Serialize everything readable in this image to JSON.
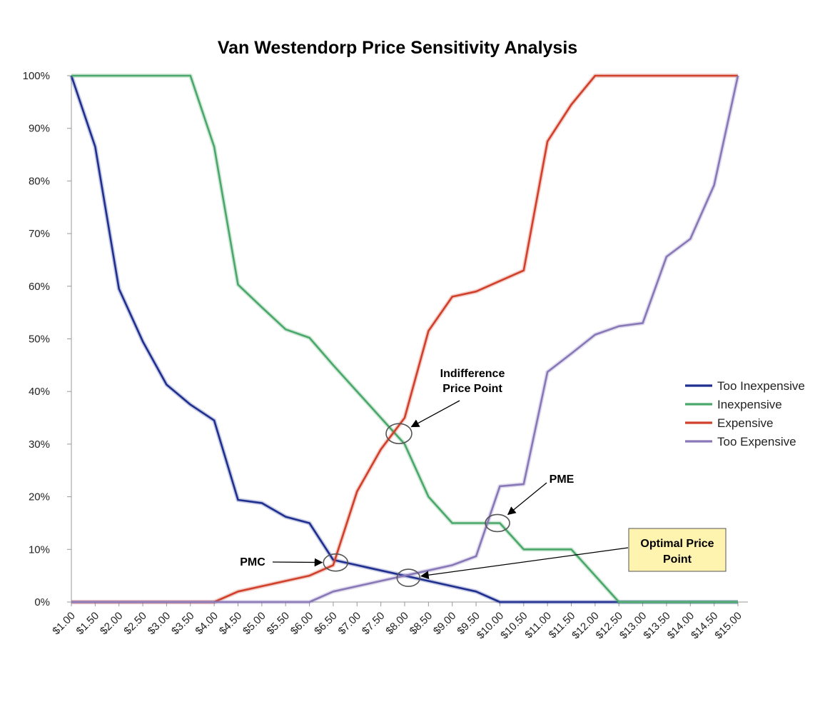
{
  "chart_data": {
    "type": "line",
    "title": "Van Westendorp Price Sensitivity Analysis",
    "xlabel": "",
    "ylabel": "",
    "x": [
      "$1.00",
      "$1.50",
      "$2.00",
      "$2.50",
      "$3.00",
      "$3.50",
      "$4.00",
      "$4.50",
      "$5.00",
      "$5.50",
      "$6.00",
      "$6.50",
      "$7.00",
      "$7.50",
      "$8.00",
      "$8.50",
      "$9.00",
      "$9.50",
      "$10.00",
      "$10.50",
      "$11.00",
      "$11.50",
      "$12.00",
      "$12.50",
      "$13.00",
      "$13.50",
      "$14.00",
      "$14.50",
      "$15.00"
    ],
    "yticks": [
      "0%",
      "10%",
      "20%",
      "30%",
      "40%",
      "50%",
      "60%",
      "70%",
      "80%",
      "90%",
      "100%"
    ],
    "ylim": [
      0,
      100
    ],
    "grid": false,
    "legend_position": "right",
    "series": [
      {
        "name": "Too Inexpensive",
        "color": "#1f2f8f",
        "points": [
          [
            1.0,
            100
          ],
          [
            1.5,
            86.5
          ],
          [
            2.0,
            59.5
          ],
          [
            2.5,
            49.5
          ],
          [
            3.0,
            41.3
          ],
          [
            3.5,
            37.5
          ],
          [
            4.0,
            34.5
          ],
          [
            4.5,
            19.4
          ],
          [
            5.0,
            18.8
          ],
          [
            5.5,
            16.2
          ],
          [
            6.0,
            15.0
          ],
          [
            6.5,
            8.0
          ],
          [
            7.0,
            7.0
          ],
          [
            7.5,
            6.0
          ],
          [
            8.0,
            5.0
          ],
          [
            8.5,
            4.0
          ],
          [
            9.0,
            3.0
          ],
          [
            9.5,
            2.0
          ],
          [
            10.0,
            0
          ],
          [
            15.0,
            0
          ]
        ]
      },
      {
        "name": "Inexpensive",
        "color": "#4aa86a",
        "points": [
          [
            1.0,
            100
          ],
          [
            3.5,
            100
          ],
          [
            4.0,
            86.5
          ],
          [
            4.5,
            60.3
          ],
          [
            5.0,
            56.0
          ],
          [
            5.5,
            51.8
          ],
          [
            6.0,
            50.2
          ],
          [
            6.5,
            45.0
          ],
          [
            7.0,
            40.0
          ],
          [
            7.5,
            35.0
          ],
          [
            8.0,
            30.0
          ],
          [
            8.5,
            20.0
          ],
          [
            9.0,
            15.0
          ],
          [
            9.5,
            15.0
          ],
          [
            10.0,
            15.0
          ],
          [
            10.5,
            10.0
          ],
          [
            11.0,
            10.0
          ],
          [
            11.5,
            10.0
          ],
          [
            12.0,
            5.0
          ],
          [
            12.5,
            0
          ],
          [
            15.0,
            0
          ]
        ]
      },
      {
        "name": "Expensive",
        "color": "#d0402a",
        "points": [
          [
            1.0,
            0
          ],
          [
            4.0,
            0
          ],
          [
            4.5,
            2.0
          ],
          [
            5.0,
            3.0
          ],
          [
            5.5,
            4.0
          ],
          [
            6.0,
            5.0
          ],
          [
            6.5,
            7.0
          ],
          [
            7.0,
            21.0
          ],
          [
            7.5,
            29.0
          ],
          [
            8.0,
            35.0
          ],
          [
            8.5,
            51.5
          ],
          [
            9.0,
            58.0
          ],
          [
            9.5,
            59.0
          ],
          [
            10.0,
            61.0
          ],
          [
            10.5,
            63.0
          ],
          [
            11.0,
            87.5
          ],
          [
            11.5,
            94.5
          ],
          [
            12.0,
            100
          ],
          [
            15.0,
            100
          ]
        ]
      },
      {
        "name": "Too Expensive",
        "color": "#8878b8",
        "points": [
          [
            1.0,
            0
          ],
          [
            6.0,
            0
          ],
          [
            6.5,
            2.0
          ],
          [
            7.0,
            3.0
          ],
          [
            7.5,
            4.0
          ],
          [
            8.0,
            5.0
          ],
          [
            8.5,
            6.0
          ],
          [
            9.0,
            7.0
          ],
          [
            9.5,
            8.7
          ],
          [
            10.0,
            22.0
          ],
          [
            10.5,
            22.4
          ],
          [
            11.0,
            43.7
          ],
          [
            11.5,
            47.2
          ],
          [
            12.0,
            50.8
          ],
          [
            12.5,
            52.4
          ],
          [
            13.0,
            53.0
          ],
          [
            13.5,
            65.6
          ],
          [
            14.0,
            69.0
          ],
          [
            14.5,
            79.2
          ],
          [
            15.0,
            100
          ]
        ]
      }
    ],
    "annotations": [
      {
        "id": "indifference",
        "lines": [
          "Indifference",
          "Price Point"
        ],
        "target": [
          7.88,
          32
        ]
      },
      {
        "id": "pme",
        "lines": [
          "PME"
        ],
        "target": [
          9.95,
          15
        ]
      },
      {
        "id": "pmc",
        "lines": [
          "PMC"
        ],
        "target": [
          6.55,
          7.5
        ]
      },
      {
        "id": "optimal",
        "lines": [
          "Optimal Price",
          "Point"
        ],
        "target": [
          8.08,
          4.6
        ],
        "boxed": true,
        "box_color": "#fff3b0"
      }
    ]
  }
}
